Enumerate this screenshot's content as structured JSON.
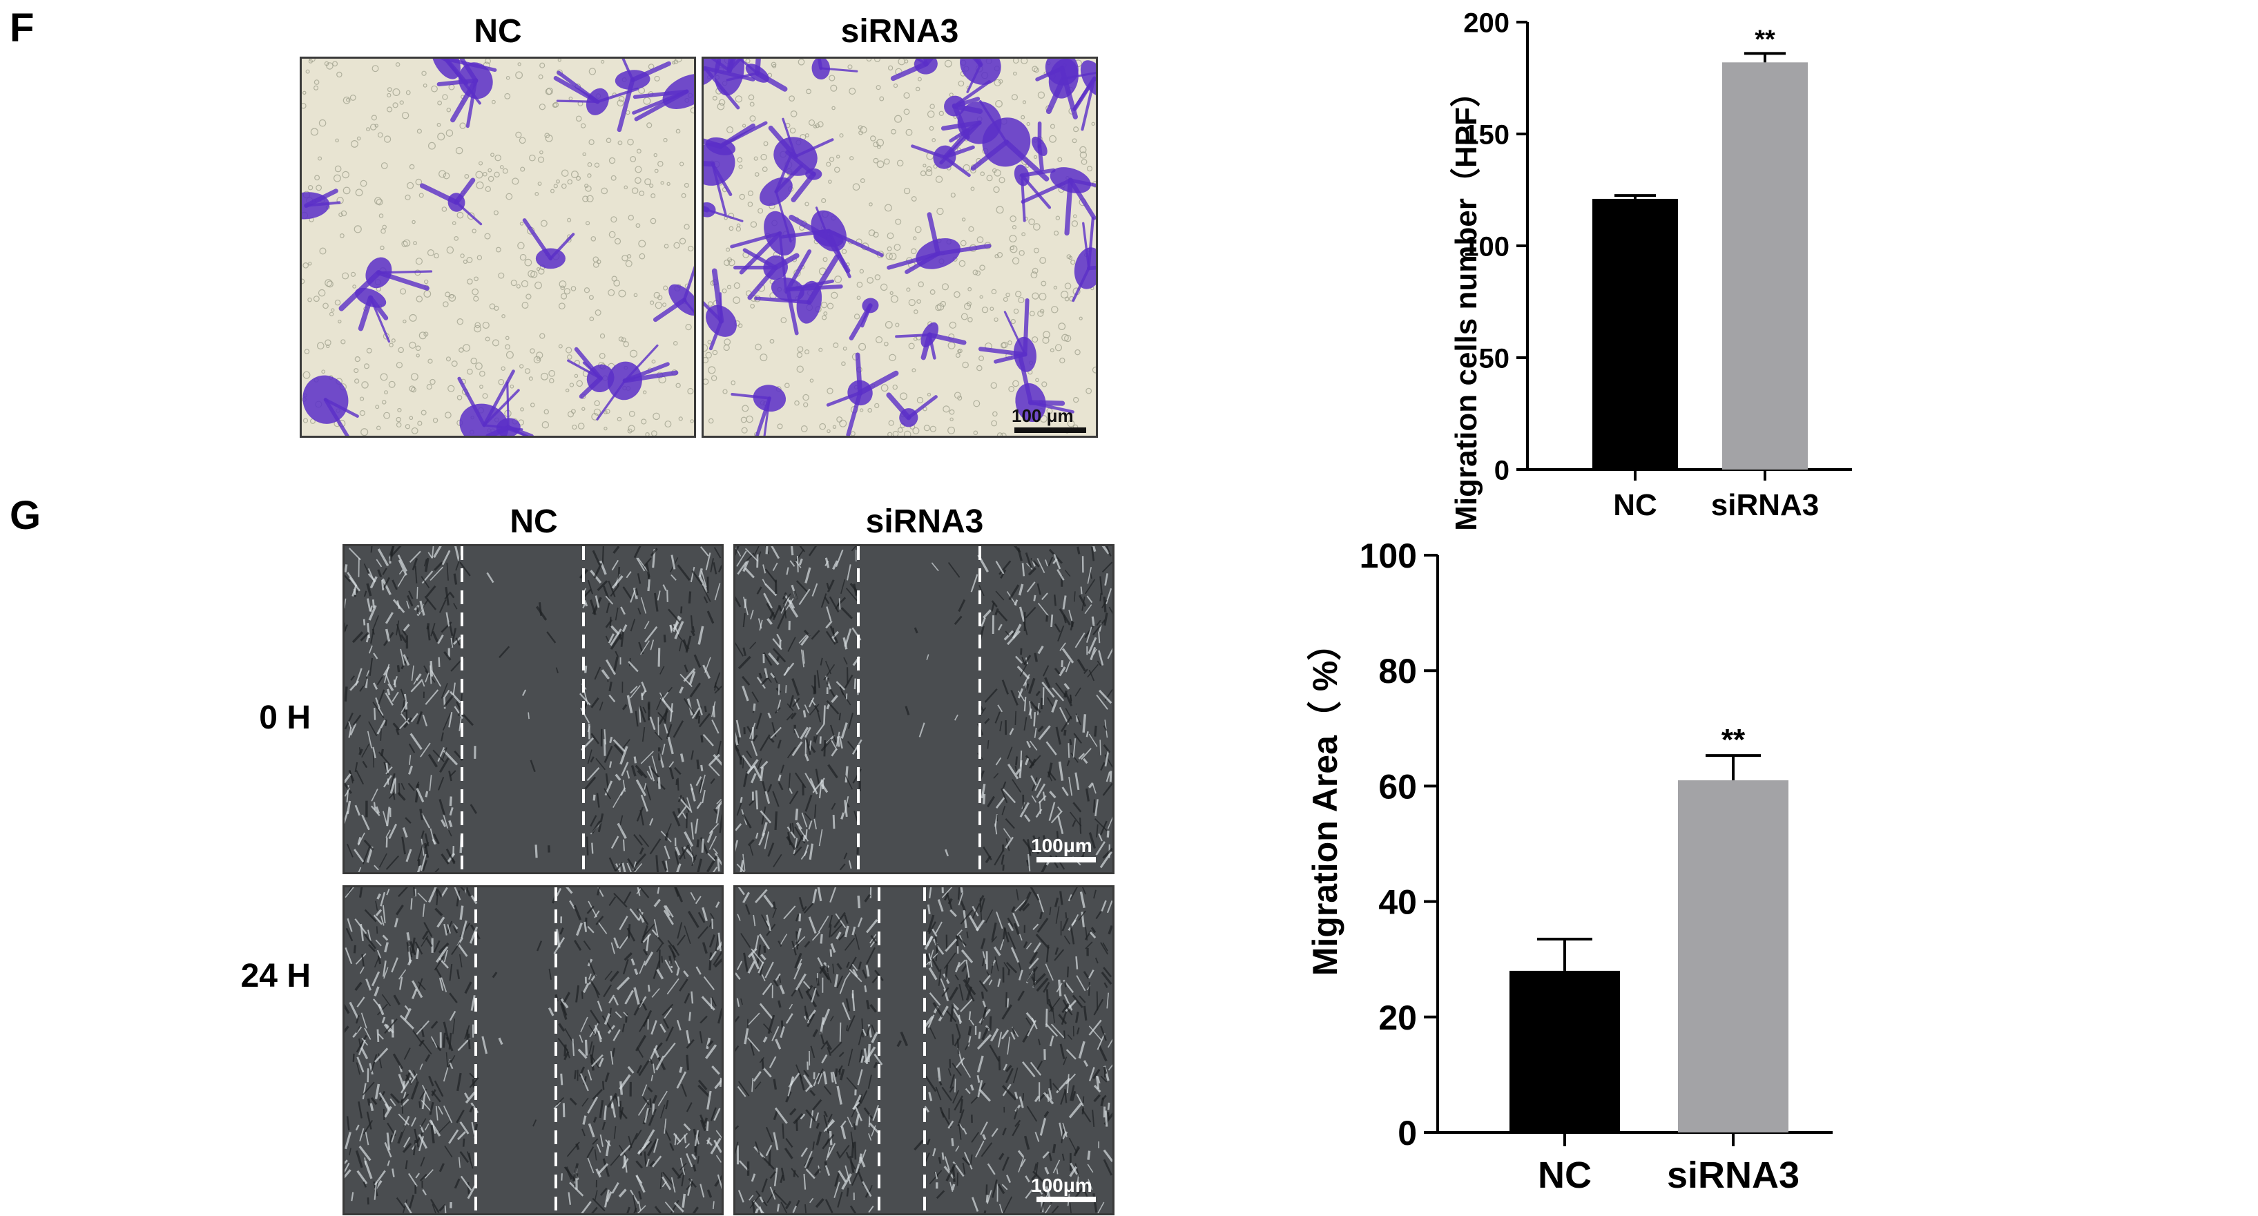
{
  "panels": {
    "F": {
      "letter": "F",
      "col_titles": [
        "NC",
        "siRNA3"
      ],
      "scale_bar": "100 μm"
    },
    "G": {
      "letter": "G",
      "col_titles": [
        "NC",
        "siRNA3"
      ],
      "row_labels": [
        "0 H",
        "24 H"
      ],
      "scale_bar": "100μm"
    }
  },
  "colors": {
    "stain_purple": "#5b2fc8",
    "nc_bar": "#000000",
    "sirna_bar": "#a3a3a6",
    "scratch_edge": "#ffffff"
  },
  "chart_data": [
    {
      "type": "bar",
      "categories": [
        "NC",
        "siRNA3"
      ],
      "values": [
        121,
        182
      ],
      "errors": [
        1.5,
        4
      ],
      "colors": [
        "#000000",
        "#a3a3a6"
      ],
      "significance": [
        "",
        "**"
      ],
      "ylabel": "Migration cells number（HPF）",
      "xlabel": "",
      "ylim": [
        0,
        200
      ],
      "yticks": [
        0,
        50,
        100,
        150,
        200
      ]
    },
    {
      "type": "bar",
      "categories": [
        "NC",
        "siRNA3"
      ],
      "values": [
        28,
        61
      ],
      "errors": [
        5.5,
        4.3
      ],
      "colors": [
        "#000000",
        "#a3a3a6"
      ],
      "significance": [
        "",
        "**"
      ],
      "ylabel": "Migration Area（ %）",
      "xlabel": "",
      "ylim": [
        0,
        100
      ],
      "yticks": [
        0,
        20,
        40,
        60,
        80,
        100
      ]
    }
  ]
}
